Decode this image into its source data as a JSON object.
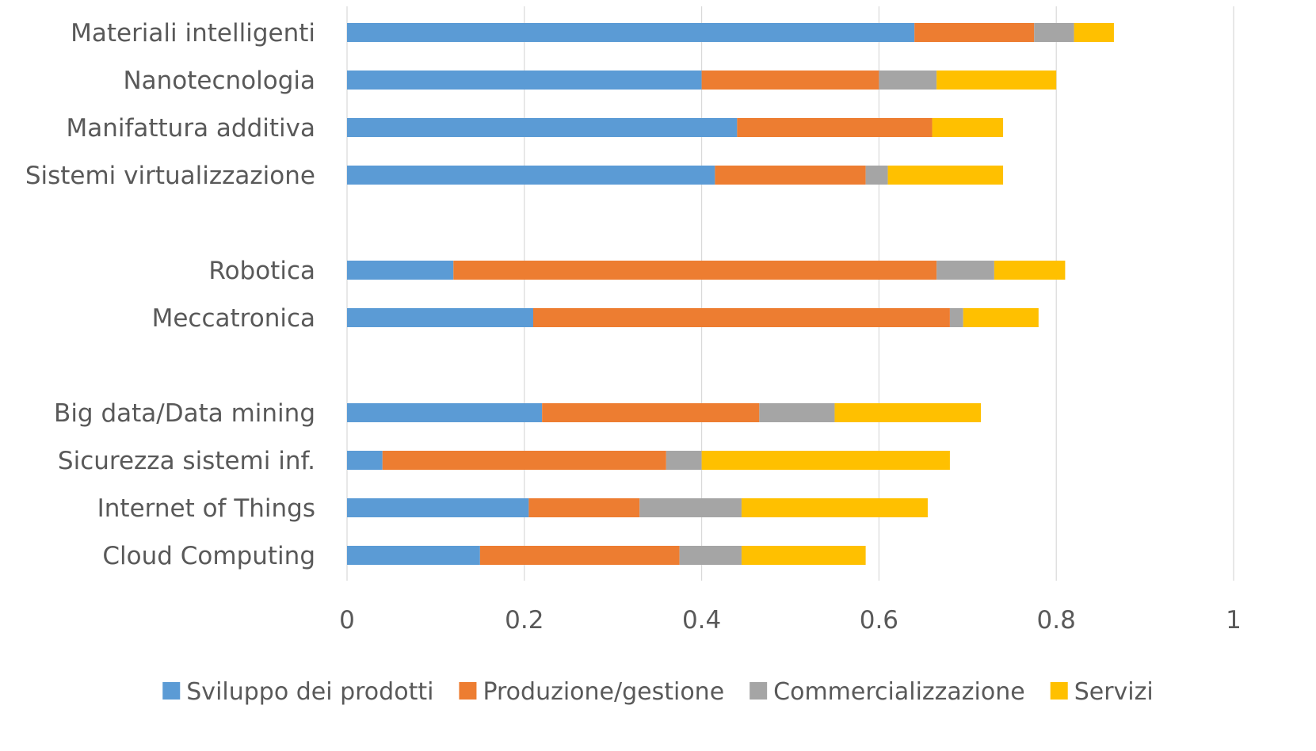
{
  "chart_data": {
    "type": "bar",
    "orientation": "horizontal",
    "stacked": true,
    "title": "",
    "xlabel": "",
    "ylabel": "",
    "xlim": [
      0,
      1
    ],
    "x_ticks": [
      0,
      0.2,
      0.4,
      0.6,
      0.8,
      1
    ],
    "x_tick_labels": [
      "0",
      "0.2",
      "0.4",
      "0.6",
      "0.8",
      "1"
    ],
    "grid": "vertical",
    "legend_position": "bottom",
    "categories": [
      "Materiali intelligenti",
      "Nanotecnologia",
      "Manifattura additiva",
      "Sistemi virtualizzazione",
      "",
      "Robotica",
      "Meccatronica",
      "",
      "Big data/Data mining",
      "Sicurezza sistemi inf.",
      "Internet of Things",
      "Cloud Computing"
    ],
    "series": [
      {
        "name": "Sviluppo dei prodotti",
        "color": "#5B9BD5",
        "values": [
          0.64,
          0.4,
          0.44,
          0.415,
          null,
          0.12,
          0.21,
          null,
          0.22,
          0.04,
          0.205,
          0.15
        ]
      },
      {
        "name": "Produzione/gestione",
        "color": "#ED7D31",
        "values": [
          0.135,
          0.2,
          0.22,
          0.17,
          null,
          0.545,
          0.47,
          null,
          0.245,
          0.32,
          0.125,
          0.225
        ]
      },
      {
        "name": "Commercializzazione",
        "color": "#A5A5A5",
        "values": [
          0.045,
          0.065,
          0.0,
          0.025,
          null,
          0.065,
          0.015,
          null,
          0.085,
          0.04,
          0.115,
          0.07
        ]
      },
      {
        "name": "Servizi",
        "color": "#FFC000",
        "values": [
          0.045,
          0.135,
          0.08,
          0.13,
          null,
          0.08,
          0.085,
          null,
          0.165,
          0.28,
          0.21,
          0.14
        ]
      }
    ]
  }
}
